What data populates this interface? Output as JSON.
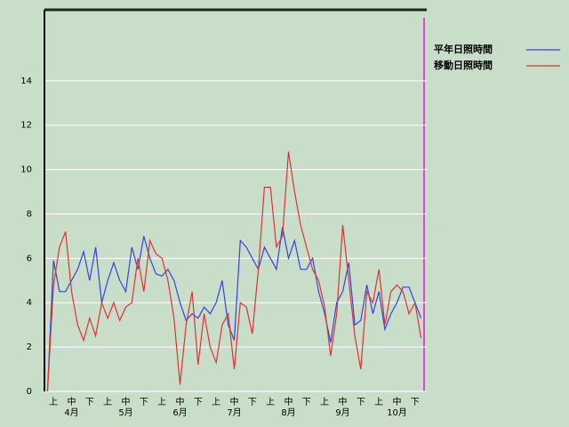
{
  "chart_data": {
    "type": "line",
    "categories": [
      null,
      "上",
      null,
      null,
      "中",
      null,
      null,
      "下",
      null,
      null,
      "上",
      null,
      null,
      "中",
      null,
      null,
      "下",
      null,
      null,
      "上",
      null,
      null,
      "中",
      null,
      null,
      "下",
      null,
      null,
      "上",
      null,
      null,
      "中",
      null,
      null,
      "下",
      null,
      null,
      "上",
      null,
      null,
      "中",
      null,
      null,
      "下",
      null,
      null,
      "上",
      null,
      null,
      "中",
      null,
      null,
      "下",
      null,
      null,
      "上",
      null,
      null,
      "中",
      null,
      null,
      "下",
      null
    ],
    "months": [
      "4月",
      "5月",
      "6月",
      "7月",
      "8月",
      "9月",
      "10月"
    ],
    "series": [
      {
        "name": "平年日照時間",
        "color": "#3344dd",
        "values": [
          0,
          5.9,
          4.5,
          4.5,
          5.0,
          5.5,
          6.3,
          5.0,
          6.5,
          4.0,
          5.0,
          5.8,
          5.0,
          4.5,
          6.5,
          5.5,
          7.0,
          6.0,
          5.3,
          5.2,
          5.5,
          5.0,
          4.0,
          3.2,
          3.5,
          3.3,
          3.8,
          3.5,
          4.0,
          5.0,
          3.0,
          2.3,
          6.8,
          6.5,
          6.0,
          5.5,
          6.5,
          6.0,
          5.5,
          7.4,
          6.0,
          6.8,
          5.5,
          5.5,
          6.0,
          4.5,
          3.5,
          2.2,
          4.0,
          4.5,
          5.8,
          3.0,
          3.2,
          4.8,
          3.5,
          4.5,
          2.8,
          3.5,
          4.0,
          4.7,
          4.7,
          4.0,
          3.3
        ]
      },
      {
        "name": "移動日照時間",
        "color": "#dd3333",
        "values": [
          0,
          4.8,
          6.5,
          7.2,
          4.5,
          3.0,
          2.3,
          3.3,
          2.5,
          4.0,
          3.3,
          4.0,
          3.2,
          3.8,
          4.0,
          6.0,
          4.5,
          6.8,
          6.2,
          6.0,
          5.0,
          3.3,
          0.3,
          3.0,
          4.5,
          1.2,
          3.5,
          2.0,
          1.3,
          3.0,
          3.5,
          1.0,
          4.0,
          3.8,
          2.6,
          5.5,
          9.2,
          9.2,
          6.5,
          7.0,
          10.8,
          9.0,
          7.5,
          6.5,
          5.5,
          5.0,
          3.8,
          1.6,
          3.5,
          7.5,
          5.0,
          2.5,
          1.0,
          4.5,
          4.0,
          5.5,
          3.0,
          4.5,
          4.8,
          4.5,
          3.5,
          4.0,
          2.4
        ]
      }
    ],
    "ylim": [
      0,
      17.2
    ],
    "yticks": [
      0,
      2,
      4,
      6,
      8,
      10,
      12,
      14
    ],
    "grid": true
  }
}
